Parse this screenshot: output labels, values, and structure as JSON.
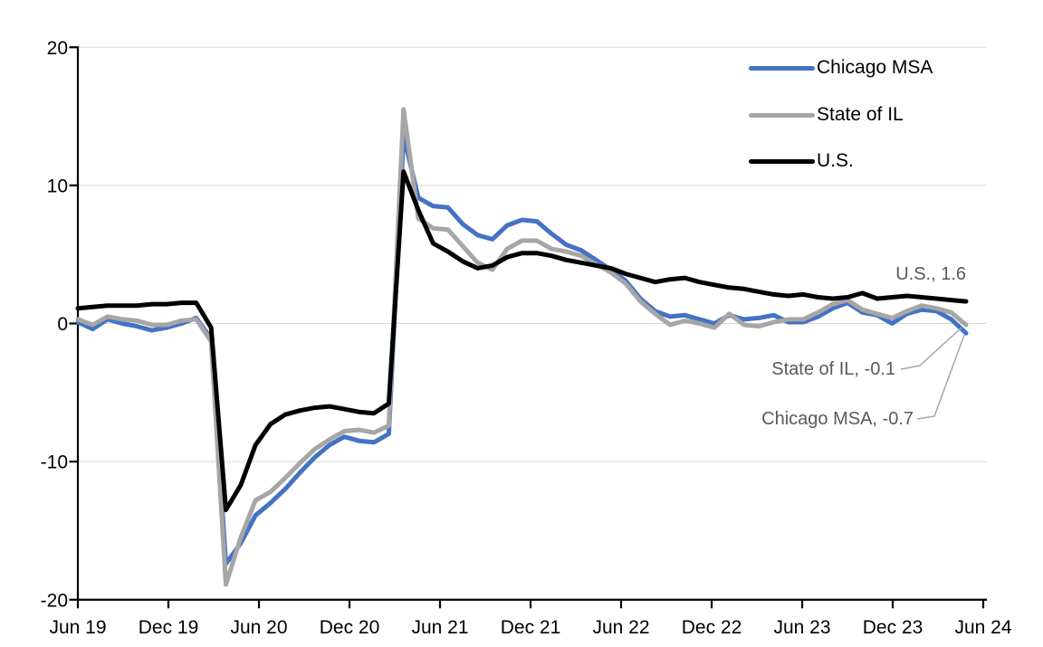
{
  "chart_data": {
    "type": "line",
    "title": "",
    "xlabel": "",
    "ylabel": "",
    "ylim": [
      -20,
      20
    ],
    "y_ticks": [
      20,
      10,
      0,
      -10,
      -20
    ],
    "grid": "horizontal",
    "gridline_color": "#D9D9D9",
    "axis_color": "#000000",
    "annotation_text_color": "#595959",
    "leader_line_color": "#A6A6A6",
    "legend_position": "top-right",
    "n_points": 61,
    "x_start_label": "Jun 19",
    "x_end_label": "Jun 24",
    "x_tick_interval_months": 6,
    "x_tick_labels": [
      "Jun 19",
      "Dec 19",
      "Jun 20",
      "Dec 20",
      "Jun 21",
      "Dec 21",
      "Jun 22",
      "Dec 22",
      "Jun 23",
      "Dec 23",
      "Jun 24"
    ],
    "series": [
      {
        "name": "Chicago MSA",
        "color": "#4472C4",
        "end_value": -0.7,
        "values": [
          0.1,
          -0.4,
          0.3,
          0.0,
          -0.2,
          -0.5,
          -0.3,
          0.0,
          0.4,
          -1.1,
          -17.4,
          -15.9,
          -13.9,
          -13.0,
          -12.0,
          -10.8,
          -9.7,
          -8.8,
          -8.2,
          -8.5,
          -8.6,
          -8.0,
          13.6,
          9.1,
          8.5,
          8.4,
          7.2,
          6.4,
          6.1,
          7.1,
          7.5,
          7.4,
          6.5,
          5.7,
          5.3,
          4.6,
          3.9,
          3.1,
          1.8,
          0.9,
          0.5,
          0.6,
          0.3,
          0.0,
          0.6,
          0.3,
          0.4,
          0.6,
          0.1,
          0.1,
          0.5,
          1.1,
          1.5,
          0.8,
          0.6,
          0.0,
          0.7,
          1.0,
          0.9,
          0.3,
          -0.7
        ]
      },
      {
        "name": "State of IL",
        "color": "#A6A6A6",
        "end_value": -0.1,
        "values": [
          0.3,
          -0.1,
          0.5,
          0.3,
          0.2,
          -0.1,
          -0.1,
          0.2,
          0.3,
          -1.3,
          -18.9,
          -15.5,
          -12.8,
          -12.2,
          -11.2,
          -10.1,
          -9.1,
          -8.4,
          -7.8,
          -7.7,
          -7.9,
          -7.4,
          15.5,
          7.6,
          6.9,
          6.8,
          5.6,
          4.4,
          3.9,
          5.4,
          6.0,
          6.0,
          5.4,
          5.2,
          4.9,
          4.3,
          3.7,
          2.9,
          1.6,
          0.7,
          -0.1,
          0.2,
          0.0,
          -0.3,
          0.7,
          -0.1,
          -0.2,
          0.1,
          0.3,
          0.3,
          0.8,
          1.4,
          1.7,
          1.0,
          0.7,
          0.4,
          0.9,
          1.3,
          1.1,
          0.8,
          -0.1
        ]
      },
      {
        "name": "U.S.",
        "color": "#000000",
        "end_value": 1.6,
        "values": [
          1.1,
          1.2,
          1.3,
          1.3,
          1.3,
          1.4,
          1.4,
          1.5,
          1.5,
          -0.3,
          -13.5,
          -11.7,
          -8.8,
          -7.3,
          -6.6,
          -6.3,
          -6.1,
          -6.0,
          -6.2,
          -6.4,
          -6.5,
          -5.8,
          11.0,
          8.2,
          5.8,
          5.2,
          4.5,
          4.0,
          4.2,
          4.8,
          5.1,
          5.1,
          4.9,
          4.6,
          4.4,
          4.2,
          4.0,
          3.6,
          3.3,
          3.0,
          3.2,
          3.3,
          3.0,
          2.8,
          2.6,
          2.5,
          2.3,
          2.1,
          2.0,
          2.1,
          1.9,
          1.8,
          1.9,
          2.2,
          1.8,
          1.9,
          2.0,
          1.9,
          1.8,
          1.7,
          1.6
        ]
      }
    ],
    "annotations": [
      {
        "id": "us",
        "text": "U.S., 1.6",
        "series": "U.S."
      },
      {
        "id": "il",
        "text": "State of IL, -0.1",
        "series": "State of IL"
      },
      {
        "id": "chicago",
        "text": "Chicago MSA, -0.7",
        "series": "Chicago MSA"
      }
    ]
  }
}
